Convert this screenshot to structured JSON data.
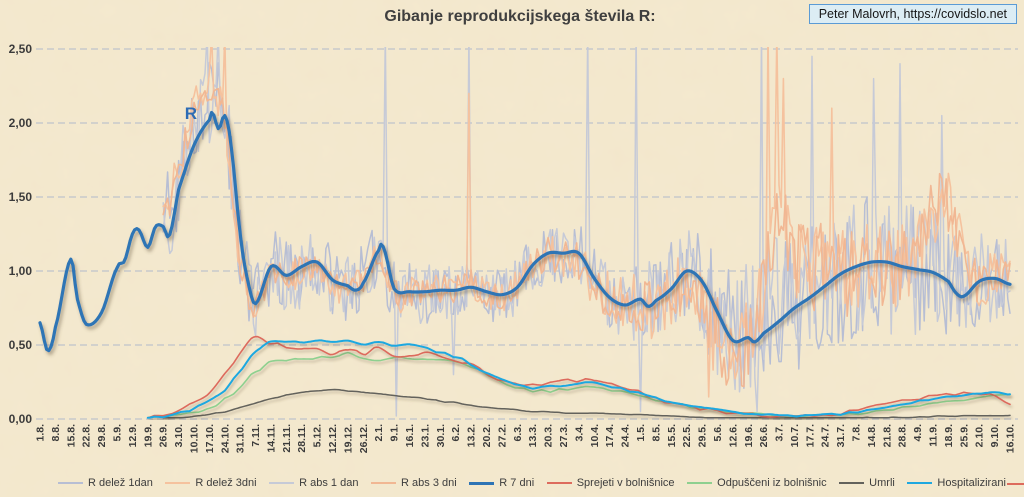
{
  "header": {
    "title": "Gibanje reprodukcijskega števila R:",
    "credit": "Peter Malovrh, https://covidslo.net"
  },
  "annotation": {
    "text": "R",
    "color": "#2d6cb5"
  },
  "colors": {
    "background": "#f4e9cf",
    "grid": "#c8c9cc",
    "axis_text": "#3b3b3b",
    "credit_bg": "#dcedf4",
    "credit_border": "#5b9bd5"
  },
  "legend": {
    "position": "bottom",
    "items": [
      {
        "label": "R delež 1dan",
        "color": "#b7bed4"
      },
      {
        "label": "R delež 3dni",
        "color": "#f5c29e"
      },
      {
        "label": "R abs 1 dan",
        "color": "#c6cad7"
      },
      {
        "label": "R abs 3 dni",
        "color": "#f1b793"
      },
      {
        "label": "R 7 dni",
        "color": "#2e74b5",
        "thick": true
      },
      {
        "label": "Sprejeti v bolnišnice",
        "color": "#dd6b5d"
      },
      {
        "label": "Odpuščeni iz bolnišnic",
        "color": "#8ed08f"
      },
      {
        "label": "Umrli",
        "color": "#63625c"
      },
      {
        "label": "Hospitalizirani",
        "color": "#1fa8e0"
      },
      {
        "label": "",
        "color": "#dd6b5d",
        "partial": true
      }
    ]
  },
  "chart_data": {
    "type": "line",
    "title": "Gibanje reprodukcijskega števila R:",
    "xlabel": "",
    "ylabel": "",
    "ylim": [
      0,
      2.5
    ],
    "grid": "horizontal-dashed",
    "legend_position": "bottom",
    "y_ticks": [
      {
        "label": "0,00",
        "v": 0.0
      },
      {
        "label": "0,50",
        "v": 0.5
      },
      {
        "label": "1,00",
        "v": 1.0
      },
      {
        "label": "1,50",
        "v": 1.5
      },
      {
        "label": "2,00",
        "v": 2.0
      },
      {
        "label": "2,50",
        "v": 2.5
      }
    ],
    "x_labels": [
      "1.8.",
      "8.8.",
      "15.8.",
      "22.8.",
      "29.8.",
      "5.9.",
      "12.9.",
      "19.9.",
      "26.9.",
      "3.10.",
      "10.10.",
      "17.10.",
      "24.10.",
      "31.10.",
      "7.11.",
      "14.11.",
      "21.11.",
      "28.11.",
      "5.12.",
      "12.12.",
      "19.12.",
      "26.12.",
      "2.1.",
      "9.1.",
      "16.1.",
      "23.1.",
      "30.1.",
      "6.2.",
      "13.2.",
      "20.2.",
      "27.2.",
      "6.3.",
      "13.3.",
      "20.3.",
      "27.3.",
      "3.4.",
      "10.4.",
      "17.4.",
      "24.4.",
      "1.5.",
      "8.5.",
      "15.5.",
      "22.5.",
      "29.5.",
      "5.6.",
      "12.6.",
      "19.6.",
      "26.6.",
      "3.7.",
      "10.7.",
      "17.7.",
      "24.7.",
      "31.7.",
      "7.8.",
      "14.8.",
      "21.8.",
      "28.8.",
      "4.9.",
      "11.9.",
      "18.9.",
      "25.9.",
      "2.10.",
      "9.10.",
      "16.10."
    ],
    "series": [
      {
        "name": "R delež 1dan",
        "color": "#b7bed4",
        "width": 1.5,
        "seed": 11,
        "noise_step": 1,
        "noise_amp": [
          [
            8,
            0.32
          ],
          [
            13,
            0.28
          ],
          [
            22,
            0.22
          ],
          [
            30,
            0.18
          ],
          [
            36,
            0.22
          ],
          [
            43,
            0.35
          ],
          [
            44,
            0.45
          ],
          [
            53,
            0.5
          ],
          [
            58,
            0.45
          ],
          [
            60,
            0.32
          ],
          [
            63,
            0.3
          ]
        ],
        "values": [
          null,
          null,
          null,
          null,
          null,
          null,
          null,
          null,
          1.3,
          1.6,
          2.0,
          2.15,
          2.05,
          1.15,
          0.8,
          1.0,
          0.95,
          1.0,
          1.05,
          0.95,
          0.9,
          0.95,
          1.1,
          0.85,
          0.85,
          0.85,
          0.87,
          0.87,
          0.9,
          0.85,
          0.84,
          0.9,
          1.05,
          1.1,
          1.1,
          1.1,
          0.95,
          0.85,
          0.8,
          0.8,
          0.8,
          0.9,
          1.0,
          0.9,
          0.7,
          0.55,
          0.6,
          0.7,
          0.8,
          0.8,
          0.85,
          0.9,
          1.0,
          1.05,
          1.1,
          1.05,
          1.0,
          1.0,
          1.0,
          0.95,
          0.85,
          0.95,
          0.95,
          0.92
        ]
      },
      {
        "name": "R abs 1 dan",
        "color": "#c6cad7",
        "width": 1.5,
        "seed": 23,
        "noise_step": 1,
        "noise_amp": [
          [
            8,
            0.32
          ],
          [
            13,
            0.28
          ],
          [
            22,
            0.22
          ],
          [
            30,
            0.18
          ],
          [
            36,
            0.22
          ],
          [
            43,
            0.35
          ],
          [
            44,
            0.45
          ],
          [
            53,
            0.5
          ],
          [
            58,
            0.45
          ],
          [
            60,
            0.32
          ],
          [
            63,
            0.3
          ]
        ],
        "spikes": [
          [
            10.9,
            2.6
          ],
          [
            11.6,
            2.6
          ],
          [
            22.4,
            2.6
          ],
          [
            23.2,
            0.02
          ],
          [
            26.9,
            0.3
          ],
          [
            27.9,
            2.6
          ],
          [
            35.6,
            2.6
          ],
          [
            38.7,
            2.6
          ],
          [
            39.0,
            0.05
          ],
          [
            45.2,
            0.2
          ],
          [
            46.6,
            0.05
          ],
          [
            46.9,
            2.6
          ],
          [
            50.2,
            2.45
          ],
          [
            54.2,
            2.3
          ],
          [
            55.8,
            2.4
          ],
          [
            58.6,
            2.05
          ]
        ],
        "values": [
          null,
          null,
          null,
          null,
          null,
          null,
          null,
          null,
          1.3,
          1.6,
          2.0,
          2.15,
          2.05,
          1.15,
          0.8,
          1.0,
          0.95,
          1.0,
          1.05,
          0.95,
          0.9,
          0.95,
          1.1,
          0.85,
          0.85,
          0.85,
          0.87,
          0.87,
          0.9,
          0.85,
          0.84,
          0.9,
          1.05,
          1.1,
          1.1,
          1.1,
          0.95,
          0.85,
          0.8,
          0.8,
          0.8,
          0.9,
          1.0,
          0.9,
          0.7,
          0.55,
          0.6,
          0.7,
          0.8,
          0.8,
          0.85,
          0.9,
          1.0,
          1.05,
          1.1,
          1.05,
          1.0,
          1.0,
          1.0,
          0.95,
          0.85,
          0.95,
          0.95,
          0.92
        ]
      },
      {
        "name": "R delež 3dni",
        "color": "#f5c29e",
        "width": 1.6,
        "seed": 37,
        "noise_step": 1,
        "noise_amp": [
          [
            8,
            0.15
          ],
          [
            13,
            0.12
          ],
          [
            30,
            0.1
          ],
          [
            43,
            0.25
          ],
          [
            44,
            0.3
          ],
          [
            53,
            0.32
          ],
          [
            58,
            0.25
          ],
          [
            60,
            0.18
          ],
          [
            63,
            0.15
          ]
        ],
        "spikes": [
          [
            11.2,
            2.6
          ],
          [
            12.0,
            2.6
          ],
          [
            27.9,
            2.2
          ],
          [
            43.4,
            0.15
          ],
          [
            47.3,
            2.6
          ],
          [
            47.8,
            2.6
          ],
          [
            48.3,
            2.3
          ],
          [
            51.4,
            2.1
          ]
        ],
        "values": [
          null,
          null,
          null,
          null,
          null,
          null,
          null,
          null,
          1.35,
          1.7,
          2.1,
          2.25,
          2.0,
          1.05,
          0.78,
          1.0,
          0.95,
          1.02,
          1.05,
          0.92,
          0.88,
          0.95,
          1.12,
          0.84,
          0.85,
          0.86,
          0.88,
          0.88,
          0.92,
          0.84,
          0.82,
          0.9,
          1.05,
          1.12,
          1.1,
          1.08,
          0.92,
          0.82,
          0.78,
          0.78,
          0.75,
          0.85,
          0.95,
          0.75,
          0.55,
          0.42,
          0.55,
          0.85,
          1.3,
          1.1,
          1.0,
          1.05,
          1.0,
          1.0,
          1.08,
          1.02,
          1.05,
          1.1,
          1.4,
          1.45,
          1.1,
          0.92,
          1.0,
          1.0
        ]
      },
      {
        "name": "R abs 3 dni",
        "color": "#f1b793",
        "width": 1.6,
        "seed": 51,
        "noise_step": 1,
        "noise_amp": [
          [
            8,
            0.13
          ],
          [
            13,
            0.1
          ],
          [
            30,
            0.09
          ],
          [
            43,
            0.22
          ],
          [
            44,
            0.27
          ],
          [
            53,
            0.3
          ],
          [
            58,
            0.22
          ],
          [
            60,
            0.16
          ],
          [
            63,
            0.13
          ]
        ],
        "values": [
          null,
          null,
          null,
          null,
          null,
          null,
          null,
          null,
          1.35,
          1.7,
          2.1,
          2.25,
          2.0,
          1.05,
          0.78,
          1.0,
          0.95,
          1.02,
          1.05,
          0.92,
          0.88,
          0.95,
          1.12,
          0.84,
          0.85,
          0.86,
          0.88,
          0.88,
          0.92,
          0.84,
          0.82,
          0.9,
          1.05,
          1.12,
          1.1,
          1.08,
          0.92,
          0.82,
          0.78,
          0.78,
          0.75,
          0.85,
          0.95,
          0.75,
          0.55,
          0.42,
          0.55,
          0.85,
          1.3,
          1.1,
          1.0,
          1.05,
          1.0,
          1.0,
          1.08,
          1.02,
          1.05,
          1.1,
          1.4,
          1.45,
          1.1,
          0.92,
          1.0,
          1.0
        ]
      },
      {
        "name": "Umrli",
        "color": "#63625c",
        "width": 1.5,
        "seed": 77,
        "noise_step": 4,
        "shadow": "soft",
        "noise_amp": [
          [
            8,
            0.004
          ],
          [
            63,
            0.004
          ]
        ],
        "values": [
          null,
          null,
          null,
          null,
          null,
          null,
          null,
          null,
          0.005,
          0.01,
          0.02,
          0.03,
          0.05,
          0.08,
          0.11,
          0.14,
          0.16,
          0.18,
          0.19,
          0.2,
          0.19,
          0.18,
          0.17,
          0.16,
          0.15,
          0.14,
          0.12,
          0.11,
          0.09,
          0.08,
          0.07,
          0.06,
          0.05,
          0.05,
          0.04,
          0.04,
          0.04,
          0.035,
          0.03,
          0.03,
          0.025,
          0.02,
          0.015,
          0.012,
          0.01,
          0.008,
          0.006,
          0.005,
          0.004,
          0.004,
          0.004,
          0.004,
          0.005,
          0.006,
          0.008,
          0.01,
          0.012,
          0.015,
          0.018,
          0.02,
          0.022,
          0.025,
          0.025,
          0.025
        ]
      },
      {
        "name": "Odpuščeni iz bolnišnic",
        "color": "#8ed08f",
        "width": 1.6,
        "seed": 88,
        "noise_step": 4,
        "shadow": "soft",
        "noise_amp": [
          [
            8,
            0.012
          ],
          [
            63,
            0.008
          ]
        ],
        "values": [
          null,
          null,
          null,
          null,
          null,
          null,
          null,
          null,
          0.015,
          0.03,
          0.05,
          0.08,
          0.13,
          0.22,
          0.32,
          0.38,
          0.4,
          0.4,
          0.41,
          0.42,
          0.44,
          0.41,
          0.4,
          0.42,
          0.4,
          0.41,
          0.4,
          0.38,
          0.35,
          0.3,
          0.25,
          0.21,
          0.19,
          0.19,
          0.2,
          0.21,
          0.21,
          0.2,
          0.19,
          0.16,
          0.13,
          0.11,
          0.09,
          0.075,
          0.06,
          0.05,
          0.04,
          0.03,
          0.025,
          0.02,
          0.02,
          0.02,
          0.025,
          0.035,
          0.05,
          0.06,
          0.08,
          0.09,
          0.11,
          0.12,
          0.13,
          0.145,
          0.155,
          0.16
        ]
      },
      {
        "name": "Sprejeti v bolnišnice",
        "color": "#dd6b5d",
        "width": 1.6,
        "seed": 99,
        "noise_step": 4,
        "shadow": "soft",
        "noise_amp": [
          [
            8,
            0.015
          ],
          [
            63,
            0.01
          ]
        ],
        "values": [
          null,
          null,
          null,
          null,
          null,
          null,
          null,
          0.01,
          0.03,
          0.06,
          0.11,
          0.18,
          0.3,
          0.44,
          0.55,
          0.51,
          0.49,
          0.47,
          0.48,
          0.44,
          0.47,
          0.44,
          0.48,
          0.42,
          0.42,
          0.45,
          0.42,
          0.4,
          0.37,
          0.3,
          0.26,
          0.23,
          0.23,
          0.24,
          0.26,
          0.26,
          0.27,
          0.24,
          0.21,
          0.18,
          0.14,
          0.11,
          0.09,
          0.07,
          0.05,
          0.04,
          0.03,
          0.025,
          0.02,
          0.02,
          0.02,
          0.03,
          0.04,
          0.06,
          0.08,
          0.1,
          0.12,
          0.14,
          0.155,
          0.165,
          0.17,
          0.175,
          0.16,
          0.1
        ]
      },
      {
        "name": "Hospitalizirani",
        "color": "#1fa8e0",
        "width": 2,
        "seed": 111,
        "noise_step": 4,
        "shadow": "soft",
        "noise_amp": [
          [
            8,
            0.01
          ],
          [
            63,
            0.007
          ]
        ],
        "values": [
          null,
          null,
          null,
          null,
          null,
          null,
          null,
          0.005,
          0.02,
          0.04,
          0.07,
          0.12,
          0.2,
          0.33,
          0.46,
          0.52,
          0.52,
          0.52,
          0.53,
          0.52,
          0.53,
          0.51,
          0.52,
          0.5,
          0.5,
          0.48,
          0.45,
          0.42,
          0.37,
          0.31,
          0.26,
          0.23,
          0.21,
          0.22,
          0.23,
          0.24,
          0.24,
          0.22,
          0.2,
          0.17,
          0.14,
          0.12,
          0.1,
          0.08,
          0.07,
          0.05,
          0.04,
          0.035,
          0.03,
          0.025,
          0.025,
          0.03,
          0.035,
          0.045,
          0.06,
          0.08,
          0.1,
          0.12,
          0.135,
          0.15,
          0.16,
          0.17,
          0.175,
          0.17
        ]
      },
      {
        "name": "R 7 dni",
        "color": "#2e74b5",
        "width": 3.2,
        "seed": 1,
        "shadow": "strong",
        "extra": [
          [
            0.5,
            0.46
          ],
          [
            2.4,
            0.82
          ],
          [
            5.5,
            1.07
          ],
          [
            6.4,
            1.28
          ],
          [
            7.5,
            1.3
          ],
          [
            8.4,
            1.24
          ],
          [
            11.2,
            2.07
          ],
          [
            11.6,
            1.96
          ],
          [
            12.4,
            1.85
          ],
          [
            13.5,
            0.93
          ],
          [
            20.5,
            0.87
          ],
          [
            22.3,
            1.16
          ],
          [
            39.5,
            0.76
          ],
          [
            46.4,
            0.52
          ],
          [
            59.5,
            0.85
          ]
        ],
        "values": [
          0.65,
          0.62,
          1.08,
          0.64,
          0.72,
          1.02,
          1.25,
          1.16,
          1.3,
          1.55,
          1.85,
          2.02,
          2.05,
          1.25,
          0.78,
          1.03,
          0.97,
          1.03,
          1.06,
          0.94,
          0.9,
          0.92,
          1.14,
          0.88,
          0.86,
          0.86,
          0.87,
          0.87,
          0.89,
          0.86,
          0.84,
          0.89,
          1.04,
          1.12,
          1.12,
          1.12,
          0.95,
          0.82,
          0.77,
          0.81,
          0.8,
          0.88,
          1.0,
          0.93,
          0.72,
          0.53,
          0.55,
          0.58,
          0.66,
          0.75,
          0.82,
          0.9,
          0.98,
          1.03,
          1.06,
          1.06,
          1.03,
          1.01,
          0.99,
          0.93,
          0.83,
          0.93,
          0.95,
          0.91
        ]
      }
    ]
  }
}
